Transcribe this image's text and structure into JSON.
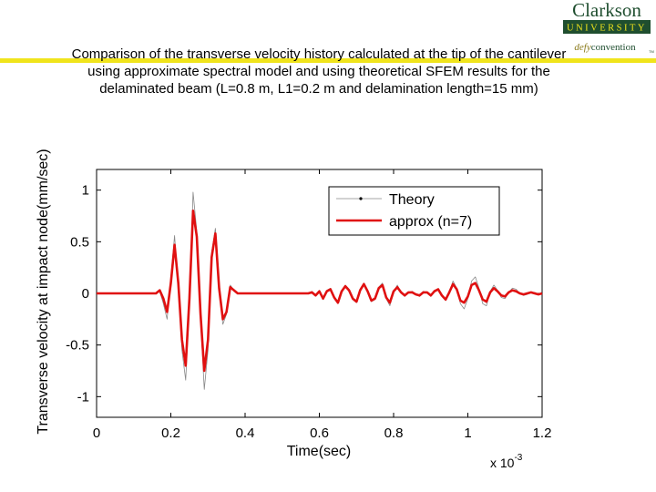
{
  "branding": {
    "logo_name": "Clarkson",
    "logo_university": "UNIVERSITY",
    "logo_tagline_defy": "defy",
    "logo_tagline_convention": "convention",
    "logo_tm": "TM",
    "primary_color": "#1f4e2f",
    "accent_color": "#f0e41c"
  },
  "slide": {
    "title": "Comparison of the transverse velocity history calculated at the tip of the cantilever using approximate spectral model and using theoretical SFEM results for the delaminated beam (L=0.8 m, L1=0.2 m and delamination length=15 mm)"
  },
  "chart_data": {
    "type": "line",
    "title": "",
    "xlabel": "Time(sec)",
    "ylabel": "Transverse velocity at impact node(mm/sec)",
    "x_multiplier_label": "x 10",
    "x_multiplier_exponent": "-3",
    "xlim": [
      0,
      1.2
    ],
    "ylim": [
      -1.2,
      1.2
    ],
    "xticks": [
      0,
      0.2,
      0.4,
      0.6,
      0.8,
      1,
      1.2
    ],
    "xtick_labels": [
      "0",
      "0.2",
      "0.4",
      "0.6",
      "0.8",
      "1",
      "1.2"
    ],
    "yticks": [
      -1,
      -0.5,
      0,
      0.5,
      1
    ],
    "ytick_labels": [
      "-1",
      "-0.5",
      "0",
      "0.5",
      "1"
    ],
    "grid": false,
    "legend_position": "top-right",
    "series": [
      {
        "name": "Theory",
        "color": "#888888",
        "x": [
          0,
          0.16,
          0.17,
          0.18,
          0.19,
          0.2,
          0.21,
          0.22,
          0.23,
          0.24,
          0.25,
          0.26,
          0.27,
          0.28,
          0.29,
          0.3,
          0.31,
          0.32,
          0.33,
          0.34,
          0.35,
          0.36,
          0.37,
          0.38,
          0.4,
          0.57,
          0.58,
          0.59,
          0.6,
          0.61,
          0.62,
          0.63,
          0.64,
          0.65,
          0.66,
          0.67,
          0.68,
          0.69,
          0.7,
          0.71,
          0.72,
          0.73,
          0.74,
          0.75,
          0.76,
          0.77,
          0.78,
          0.79,
          0.8,
          0.81,
          0.82,
          0.83,
          0.84,
          0.85,
          0.86,
          0.87,
          0.88,
          0.89,
          0.9,
          0.91,
          0.92,
          0.93,
          0.94,
          0.95,
          0.96,
          0.97,
          0.98,
          0.99,
          1.0,
          1.01,
          1.02,
          1.03,
          1.04,
          1.05,
          1.06,
          1.07,
          1.08,
          1.09,
          1.1,
          1.11,
          1.12,
          1.13,
          1.14,
          1.15,
          1.16,
          1.17,
          1.18,
          1.19,
          1.2
        ],
        "y": [
          0,
          0,
          0.02,
          -0.1,
          -0.25,
          0.15,
          0.56,
          0.05,
          -0.55,
          -0.84,
          -0.1,
          0.98,
          0.6,
          -0.25,
          -0.93,
          -0.55,
          0.4,
          0.63,
          0.05,
          -0.3,
          -0.2,
          0.08,
          0.03,
          0,
          0,
          0,
          0.02,
          -0.02,
          0.03,
          -0.06,
          0.03,
          0.05,
          -0.05,
          -0.1,
          0.02,
          0.08,
          0.04,
          -0.06,
          -0.09,
          0.04,
          0.1,
          0.02,
          -0.08,
          -0.06,
          0.06,
          0.1,
          -0.05,
          -0.12,
          0.02,
          0.08,
          0.01,
          -0.03,
          0.01,
          0.02,
          -0.01,
          -0.03,
          0.02,
          0.01,
          -0.03,
          0.02,
          0.04,
          -0.03,
          -0.07,
          0.01,
          0.12,
          0.05,
          -0.1,
          -0.15,
          -0.05,
          0.12,
          0.16,
          0.05,
          -0.1,
          -0.12,
          0.02,
          0.08,
          0.03,
          -0.04,
          -0.05,
          0.01,
          0.05,
          0.04,
          0,
          -0.02,
          -0.01,
          0.01,
          0.01,
          -0.01,
          -0.01
        ]
      },
      {
        "name": "approx (n=7)",
        "color": "#e01010",
        "x": [
          0,
          0.16,
          0.17,
          0.18,
          0.19,
          0.2,
          0.21,
          0.22,
          0.23,
          0.24,
          0.25,
          0.26,
          0.27,
          0.28,
          0.29,
          0.3,
          0.31,
          0.32,
          0.33,
          0.34,
          0.35,
          0.36,
          0.37,
          0.38,
          0.4,
          0.57,
          0.58,
          0.59,
          0.6,
          0.61,
          0.62,
          0.63,
          0.64,
          0.65,
          0.66,
          0.67,
          0.68,
          0.69,
          0.7,
          0.71,
          0.72,
          0.73,
          0.74,
          0.75,
          0.76,
          0.77,
          0.78,
          0.79,
          0.8,
          0.81,
          0.82,
          0.83,
          0.84,
          0.85,
          0.86,
          0.87,
          0.88,
          0.89,
          0.9,
          0.91,
          0.92,
          0.93,
          0.94,
          0.95,
          0.96,
          0.97,
          0.98,
          0.99,
          1.0,
          1.01,
          1.02,
          1.03,
          1.04,
          1.05,
          1.06,
          1.07,
          1.08,
          1.09,
          1.1,
          1.11,
          1.12,
          1.13,
          1.14,
          1.15,
          1.16,
          1.17,
          1.18,
          1.19,
          1.2
        ],
        "y": [
          0,
          0,
          0.03,
          -0.05,
          -0.18,
          0.1,
          0.47,
          0.1,
          -0.45,
          -0.7,
          -0.05,
          0.8,
          0.55,
          -0.2,
          -0.75,
          -0.45,
          0.35,
          0.58,
          0.05,
          -0.25,
          -0.18,
          0.06,
          0.03,
          0,
          0,
          0,
          0.01,
          -0.02,
          0.02,
          -0.05,
          0.02,
          0.04,
          -0.04,
          -0.09,
          0.02,
          0.07,
          0.03,
          -0.05,
          -0.08,
          0.03,
          0.09,
          0.02,
          -0.07,
          -0.05,
          0.05,
          0.08,
          -0.04,
          -0.09,
          0.02,
          0.06,
          0.01,
          -0.02,
          0.01,
          0.01,
          -0.01,
          -0.02,
          0.01,
          0.01,
          -0.02,
          0.02,
          0.04,
          -0.02,
          -0.06,
          0.01,
          0.09,
          0.04,
          -0.07,
          -0.09,
          -0.03,
          0.08,
          0.1,
          0.03,
          -0.06,
          -0.08,
          0.01,
          0.05,
          0.02,
          -0.02,
          -0.03,
          0.01,
          0.03,
          0.02,
          0,
          -0.01,
          0,
          0.01,
          0,
          -0.01,
          0
        ]
      }
    ]
  }
}
